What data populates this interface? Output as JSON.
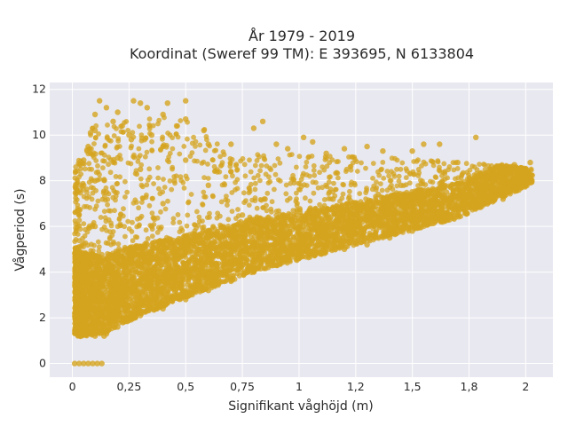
{
  "chart_data": {
    "type": "scatter",
    "title": "År 1979 - 2019",
    "subtitle": "Koordinat (Sweref 99 TM): E 393695, N 6133804",
    "xlabel": "Signifikant våghöjd (m)",
    "ylabel": "Vågperiod (s)",
    "xlim": [
      -0.1,
      2.12
    ],
    "ylim": [
      -0.6,
      12.3
    ],
    "x_ticks": [
      0,
      0.25,
      0.5,
      0.75,
      1,
      1.25,
      1.5,
      1.75,
      2
    ],
    "x_tick_labels": [
      "0",
      "0,25",
      "0,5",
      "0,75",
      "1",
      "1,2",
      "1,5",
      "1,8",
      "2"
    ],
    "y_ticks": [
      0,
      2,
      4,
      6,
      8,
      10,
      12
    ],
    "y_tick_labels": [
      "0",
      "2",
      "4",
      "6",
      "8",
      "10",
      "12"
    ],
    "grid": true,
    "marker_color": "#D4A41F",
    "plot_background": "#E8E8F0",
    "series": [
      {
        "points": [
          [
            0.01,
            0.0
          ],
          [
            0.03,
            0.0
          ],
          [
            0.05,
            0.0
          ],
          [
            0.07,
            0.0
          ],
          [
            0.09,
            0.0
          ],
          [
            0.11,
            0.0
          ],
          [
            0.13,
            0.0
          ],
          [
            0.03,
            1.4
          ],
          [
            0.06,
            1.25
          ],
          [
            0.1,
            1.2
          ],
          [
            0.14,
            1.2
          ],
          [
            0.02,
            2.2
          ],
          [
            0.02,
            3.5
          ],
          [
            0.02,
            5.0
          ],
          [
            0.03,
            6.7
          ],
          [
            0.05,
            7.8
          ],
          [
            0.05,
            8.9
          ],
          [
            0.07,
            9.5
          ],
          [
            0.08,
            10.1
          ],
          [
            0.1,
            10.9
          ],
          [
            0.12,
            11.5
          ],
          [
            0.1,
            10.2
          ],
          [
            0.15,
            11.2
          ],
          [
            0.2,
            11.0
          ],
          [
            0.27,
            11.5
          ],
          [
            0.3,
            11.4
          ],
          [
            0.33,
            11.2
          ],
          [
            0.4,
            10.9
          ],
          [
            0.42,
            11.4
          ],
          [
            0.5,
            11.5
          ],
          [
            0.5,
            10.7
          ],
          [
            0.22,
            10.4
          ],
          [
            0.26,
            9.8
          ],
          [
            0.35,
            10.0
          ],
          [
            0.46,
            10.4
          ],
          [
            0.58,
            10.2
          ],
          [
            0.6,
            9.6
          ],
          [
            0.7,
            9.6
          ],
          [
            0.8,
            10.3
          ],
          [
            0.84,
            10.6
          ],
          [
            0.9,
            9.6
          ],
          [
            0.95,
            9.4
          ],
          [
            1.02,
            9.9
          ],
          [
            1.06,
            9.7
          ],
          [
            1.12,
            9.2
          ],
          [
            1.2,
            9.4
          ],
          [
            1.3,
            9.5
          ],
          [
            1.37,
            9.3
          ],
          [
            1.5,
            9.3
          ],
          [
            1.55,
            9.6
          ],
          [
            1.62,
            9.6
          ],
          [
            1.78,
            9.9
          ],
          [
            1.7,
            8.8
          ],
          [
            1.86,
            8.5
          ],
          [
            1.95,
            8.7
          ],
          [
            2.02,
            8.8
          ],
          [
            2.0,
            8.2
          ],
          [
            1.97,
            7.6
          ],
          [
            1.9,
            7.2
          ],
          [
            1.8,
            7.0
          ],
          [
            1.7,
            6.5
          ],
          [
            1.6,
            6.2
          ],
          [
            1.5,
            5.8
          ],
          [
            1.4,
            5.5
          ],
          [
            1.3,
            5.2
          ],
          [
            1.2,
            5.0
          ],
          [
            1.1,
            4.8
          ],
          [
            1.0,
            4.6
          ],
          [
            0.9,
            4.3
          ],
          [
            0.8,
            4.0
          ],
          [
            0.7,
            3.6
          ],
          [
            0.6,
            3.2
          ],
          [
            0.5,
            2.8
          ],
          [
            0.4,
            2.4
          ],
          [
            0.3,
            2.1
          ],
          [
            0.25,
            1.9
          ],
          [
            0.2,
            1.6
          ],
          [
            0.15,
            1.3
          ],
          [
            0.08,
            1.3
          ],
          [
            0.12,
            1.6
          ],
          [
            0.18,
            2.2
          ],
          [
            0.22,
            3.0
          ],
          [
            0.25,
            4.0
          ],
          [
            0.3,
            5.0
          ],
          [
            0.35,
            6.0
          ],
          [
            0.4,
            7.0
          ],
          [
            0.45,
            8.0
          ],
          [
            0.3,
            8.5
          ],
          [
            0.2,
            9.0
          ],
          [
            0.15,
            7.5
          ],
          [
            0.1,
            6.0
          ],
          [
            0.12,
            4.5
          ],
          [
            0.08,
            3.2
          ],
          [
            0.55,
            4.5
          ],
          [
            0.65,
            5.5
          ],
          [
            0.75,
            6.5
          ],
          [
            0.85,
            7.2
          ],
          [
            0.95,
            6.0
          ],
          [
            1.05,
            6.8
          ],
          [
            1.15,
            7.2
          ],
          [
            1.25,
            6.5
          ],
          [
            1.35,
            7.4
          ],
          [
            1.45,
            7.8
          ],
          [
            1.55,
            7.0
          ],
          [
            1.65,
            7.5
          ],
          [
            1.75,
            7.8
          ],
          [
            1.85,
            7.6
          ],
          [
            0.6,
            7.8
          ],
          [
            0.7,
            8.4
          ],
          [
            0.5,
            8.9
          ],
          [
            0.4,
            9.5
          ],
          [
            0.25,
            10.0
          ],
          [
            0.18,
            10.6
          ],
          [
            0.1,
            8.0
          ],
          [
            0.05,
            4.0
          ]
        ]
      }
    ]
  }
}
